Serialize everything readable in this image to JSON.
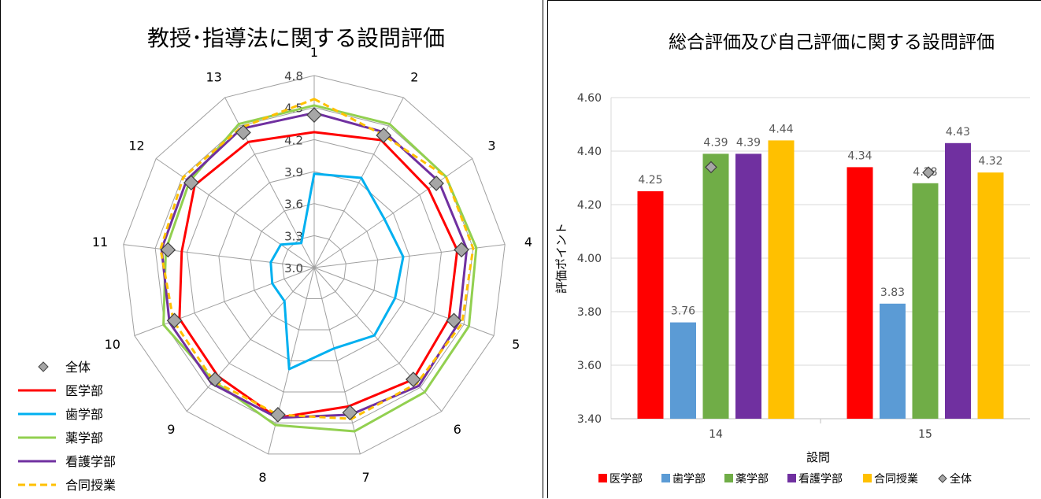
{
  "chart_data": [
    {
      "type": "radar",
      "title": "教授･指導法に関する設問評価",
      "categories": [
        "1",
        "2",
        "3",
        "4",
        "5",
        "6",
        "7",
        "8",
        "9",
        "10",
        "11",
        "12",
        "13"
      ],
      "rlim": [
        3.0,
        4.8
      ],
      "rticks": [
        "3.0",
        "3.3",
        "3.6",
        "3.9",
        "4.2",
        "4.5",
        "4.8"
      ],
      "legend_position": "bottom-left",
      "series": [
        {
          "name": "全体",
          "color": "#A6A6A6",
          "style": "marker",
          "values": [
            4.43,
            4.4,
            4.39,
            4.39,
            4.4,
            4.4,
            4.4,
            4.42,
            4.4,
            4.4,
            4.38,
            4.4,
            4.43
          ]
        },
        {
          "name": "医学部",
          "color": "#FF0000",
          "style": "solid",
          "values": [
            4.27,
            4.35,
            4.3,
            4.35,
            4.35,
            4.4,
            4.34,
            4.45,
            4.36,
            4.35,
            4.25,
            4.36,
            4.33
          ]
        },
        {
          "name": "歯学部",
          "color": "#00B0F0",
          "style": "solid",
          "values": [
            3.88,
            3.95,
            3.8,
            3.84,
            3.81,
            3.85,
            3.78,
            3.98,
            3.42,
            3.42,
            3.41,
            3.38,
            3.26
          ]
        },
        {
          "name": "薬学部",
          "color": "#92D050",
          "style": "solid",
          "values": [
            4.52,
            4.52,
            4.5,
            4.53,
            4.55,
            4.56,
            4.58,
            4.52,
            4.42,
            4.51,
            4.4,
            4.42,
            4.52
          ]
        },
        {
          "name": "看護学部",
          "color": "#7030A0",
          "style": "solid",
          "values": [
            4.45,
            4.43,
            4.42,
            4.44,
            4.45,
            4.48,
            4.42,
            4.45,
            4.45,
            4.45,
            4.44,
            4.45,
            4.47
          ]
        },
        {
          "name": "合同授業",
          "color": "#FFC000",
          "style": "dashed",
          "values": [
            4.58,
            4.4,
            4.5,
            4.5,
            4.48,
            4.45,
            4.46,
            4.42,
            4.42,
            4.41,
            4.45,
            4.49,
            4.48
          ]
        }
      ]
    },
    {
      "type": "bar",
      "title": "総合評価及び自己評価に関する設問評価",
      "xlabel": "設問",
      "ylabel": "評価ポイント",
      "categories": [
        "14",
        "15"
      ],
      "ylim": [
        3.4,
        4.6
      ],
      "yticks": [
        "3.40",
        "3.60",
        "3.80",
        "4.00",
        "4.20",
        "4.40",
        "4.60"
      ],
      "grid": true,
      "legend_position": "bottom",
      "series": [
        {
          "name": "医学部",
          "color": "#FF0000",
          "values": [
            4.25,
            4.34
          ],
          "labels": [
            "4.25",
            "4.34"
          ]
        },
        {
          "name": "歯学部",
          "color": "#5B9BD5",
          "values": [
            3.76,
            3.83
          ],
          "labels": [
            "3.76",
            "3.83"
          ]
        },
        {
          "name": "薬学部",
          "color": "#70AD47",
          "values": [
            4.39,
            4.28
          ],
          "labels": [
            "4.39",
            "4.28"
          ]
        },
        {
          "name": "看護学部",
          "color": "#7030A0",
          "values": [
            4.39,
            4.43
          ],
          "labels": [
            "4.39",
            "4.43"
          ]
        },
        {
          "name": "合同授業",
          "color": "#FFC000",
          "values": [
            4.44,
            4.32
          ],
          "labels": [
            "4.44",
            "4.32"
          ]
        }
      ],
      "overall": {
        "name": "全体",
        "color": "#A6A6A6",
        "values": [
          4.34,
          4.32
        ]
      }
    }
  ]
}
